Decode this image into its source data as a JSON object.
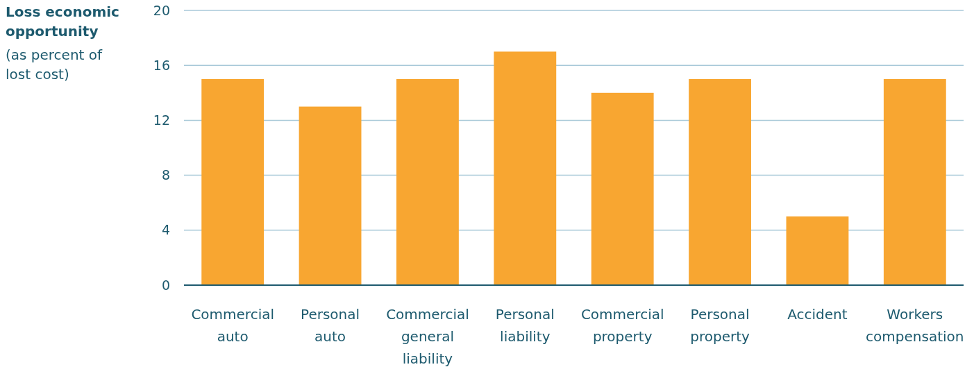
{
  "chart_data": {
    "type": "bar",
    "title": "Loss economic opportunity",
    "ylabel": "(as percent of lost cost)",
    "categories": [
      "Commercial auto",
      "Personal auto",
      "Commercial general liability",
      "Personal liability",
      "Commercial property",
      "Personal property",
      "Accident",
      "Workers compensation"
    ],
    "values": [
      15,
      13,
      15,
      17,
      14,
      15,
      5,
      15
    ],
    "color": "#f8a631",
    "ylim": [
      0,
      20
    ],
    "yticks": [
      0,
      4,
      8,
      12,
      16,
      20
    ],
    "grid": "y"
  }
}
